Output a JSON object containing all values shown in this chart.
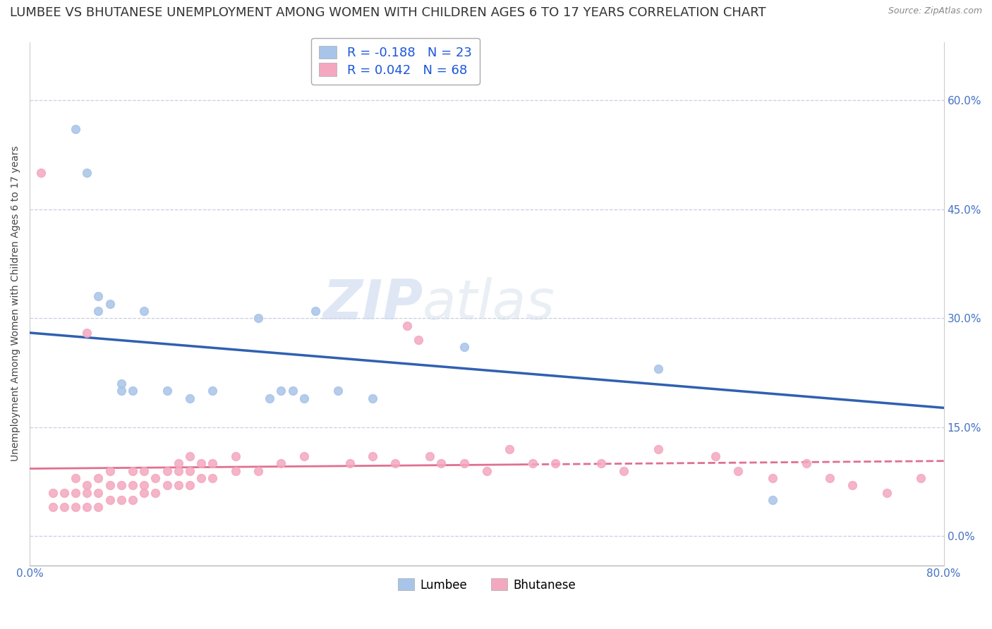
{
  "title": "LUMBEE VS BHUTANESE UNEMPLOYMENT AMONG WOMEN WITH CHILDREN AGES 6 TO 17 YEARS CORRELATION CHART",
  "source": "Source: ZipAtlas.com",
  "ylabel": "Unemployment Among Women with Children Ages 6 to 17 years",
  "xlim": [
    0.0,
    0.8
  ],
  "ylim": [
    -0.04,
    0.68
  ],
  "yticks": [
    0.0,
    0.15,
    0.3,
    0.45,
    0.6
  ],
  "ytick_labels": [
    "0.0%",
    "15.0%",
    "30.0%",
    "45.0%",
    "60.0%"
  ],
  "xticks": [
    0.0,
    0.2,
    0.4,
    0.6,
    0.8
  ],
  "xtick_labels": [
    "0.0%",
    "",
    "",
    "",
    "80.0%"
  ],
  "background_color": "#ffffff",
  "grid_color": "#c8cfe0",
  "lumbee_color": "#a8c4e8",
  "bhutanese_color": "#f4a8c0",
  "lumbee_line_color": "#3060b0",
  "bhutanese_line_color": "#e07090",
  "lumbee_R": -0.188,
  "lumbee_N": 23,
  "bhutanese_R": 0.042,
  "bhutanese_N": 68,
  "lumbee_x": [
    0.04,
    0.05,
    0.06,
    0.06,
    0.07,
    0.08,
    0.08,
    0.09,
    0.1,
    0.12,
    0.14,
    0.16,
    0.2,
    0.21,
    0.22,
    0.23,
    0.24,
    0.25,
    0.27,
    0.3,
    0.38,
    0.55,
    0.65
  ],
  "lumbee_y": [
    0.56,
    0.5,
    0.31,
    0.33,
    0.32,
    0.2,
    0.21,
    0.2,
    0.31,
    0.2,
    0.19,
    0.2,
    0.3,
    0.19,
    0.2,
    0.2,
    0.19,
    0.31,
    0.2,
    0.19,
    0.26,
    0.23,
    0.05
  ],
  "bhutanese_x": [
    0.01,
    0.02,
    0.02,
    0.03,
    0.03,
    0.04,
    0.04,
    0.04,
    0.05,
    0.05,
    0.05,
    0.05,
    0.06,
    0.06,
    0.06,
    0.07,
    0.07,
    0.07,
    0.08,
    0.08,
    0.09,
    0.09,
    0.09,
    0.1,
    0.1,
    0.1,
    0.11,
    0.11,
    0.12,
    0.12,
    0.13,
    0.13,
    0.13,
    0.14,
    0.14,
    0.14,
    0.15,
    0.15,
    0.16,
    0.16,
    0.18,
    0.18,
    0.2,
    0.22,
    0.24,
    0.28,
    0.3,
    0.32,
    0.33,
    0.34,
    0.35,
    0.36,
    0.38,
    0.4,
    0.42,
    0.44,
    0.46,
    0.5,
    0.52,
    0.55,
    0.6,
    0.62,
    0.65,
    0.68,
    0.7,
    0.72,
    0.75,
    0.78
  ],
  "bhutanese_y": [
    0.5,
    0.04,
    0.06,
    0.04,
    0.06,
    0.04,
    0.06,
    0.08,
    0.04,
    0.06,
    0.07,
    0.28,
    0.04,
    0.06,
    0.08,
    0.05,
    0.07,
    0.09,
    0.05,
    0.07,
    0.05,
    0.07,
    0.09,
    0.06,
    0.07,
    0.09,
    0.06,
    0.08,
    0.07,
    0.09,
    0.07,
    0.09,
    0.1,
    0.07,
    0.09,
    0.11,
    0.08,
    0.1,
    0.08,
    0.1,
    0.09,
    0.11,
    0.09,
    0.1,
    0.11,
    0.1,
    0.11,
    0.1,
    0.29,
    0.27,
    0.11,
    0.1,
    0.1,
    0.09,
    0.12,
    0.1,
    0.1,
    0.1,
    0.09,
    0.12,
    0.11,
    0.09,
    0.08,
    0.1,
    0.08,
    0.07,
    0.06,
    0.08
  ],
  "watermark_zip": "ZIP",
  "watermark_atlas": "atlas",
  "legend_color": "#1a56db",
  "title_fontsize": 13,
  "axis_label_fontsize": 10,
  "tick_fontsize": 11,
  "tick_color": "#4472c4",
  "marker_size": 70,
  "marker_linewidth": 1.2
}
